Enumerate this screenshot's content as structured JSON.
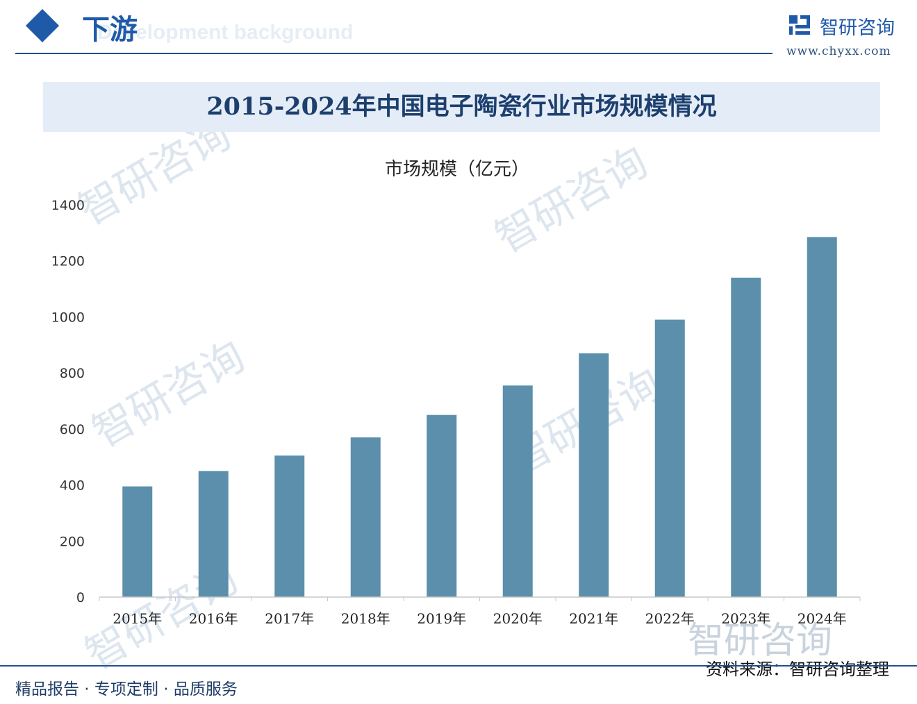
{
  "header": {
    "section_title": "下游",
    "section_subtitle": "Development background",
    "brand_name": "智研咨询",
    "brand_url": "www.chyxx.com"
  },
  "footer": {
    "tagline": "精品报告 · 专项定制 · 品质服务",
    "source": "资料来源：智研咨询整理"
  },
  "watermark_text": "智研咨询",
  "colors": {
    "accent": "#1f5aa8",
    "bar": "#5b8fab",
    "banner": "#e4edf7",
    "title": "#1d3f6e"
  },
  "chart_data": {
    "type": "bar",
    "title": "2015-2024年中国电子陶瓷行业市场规模情况",
    "ylabel": "市场规模（亿元）",
    "xlabel": "",
    "categories": [
      "2015年",
      "2016年",
      "2017年",
      "2018年",
      "2019年",
      "2020年",
      "2021年",
      "2022年",
      "2023年",
      "2024年"
    ],
    "values": [
      395,
      450,
      505,
      570,
      650,
      755,
      870,
      990,
      1140,
      1285
    ],
    "ylim": [
      0,
      1400
    ],
    "yticks": [
      0,
      200,
      400,
      600,
      800,
      1000,
      1200,
      1400
    ],
    "grid": false,
    "legend": "none"
  }
}
